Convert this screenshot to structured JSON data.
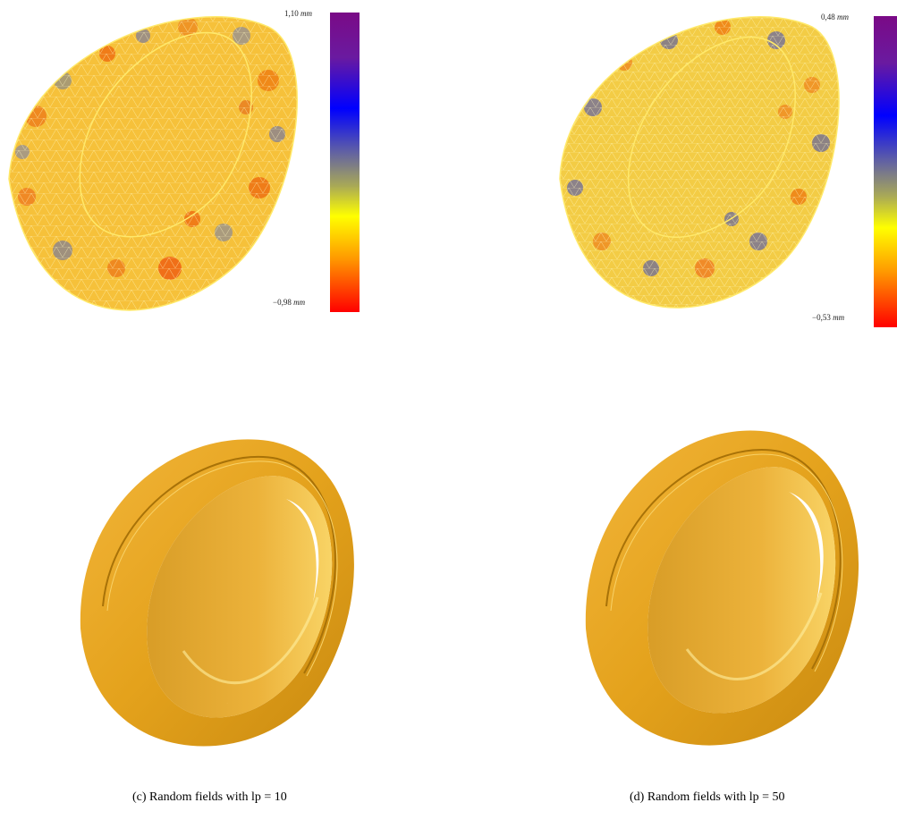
{
  "panels": {
    "a": {
      "scale_max": "1,10",
      "scale_min": "−0,98",
      "unit": "mm"
    },
    "b": {
      "scale_max": "0,48",
      "scale_min": "−0,53",
      "unit": "mm"
    }
  },
  "captions": {
    "c": "(c) Random fields with lp = 10",
    "d": "(d) Random fields with lp = 50"
  },
  "colors": {
    "scale_gradient": [
      "#7a0a86",
      "#6a1aa0",
      "#0000ff",
      "#6a6a9a",
      "#aaaa55",
      "#ffff00",
      "#ff9a00",
      "#ff0000"
    ],
    "field_base": "#f7c832",
    "ring_gold": "#e8a51a"
  }
}
